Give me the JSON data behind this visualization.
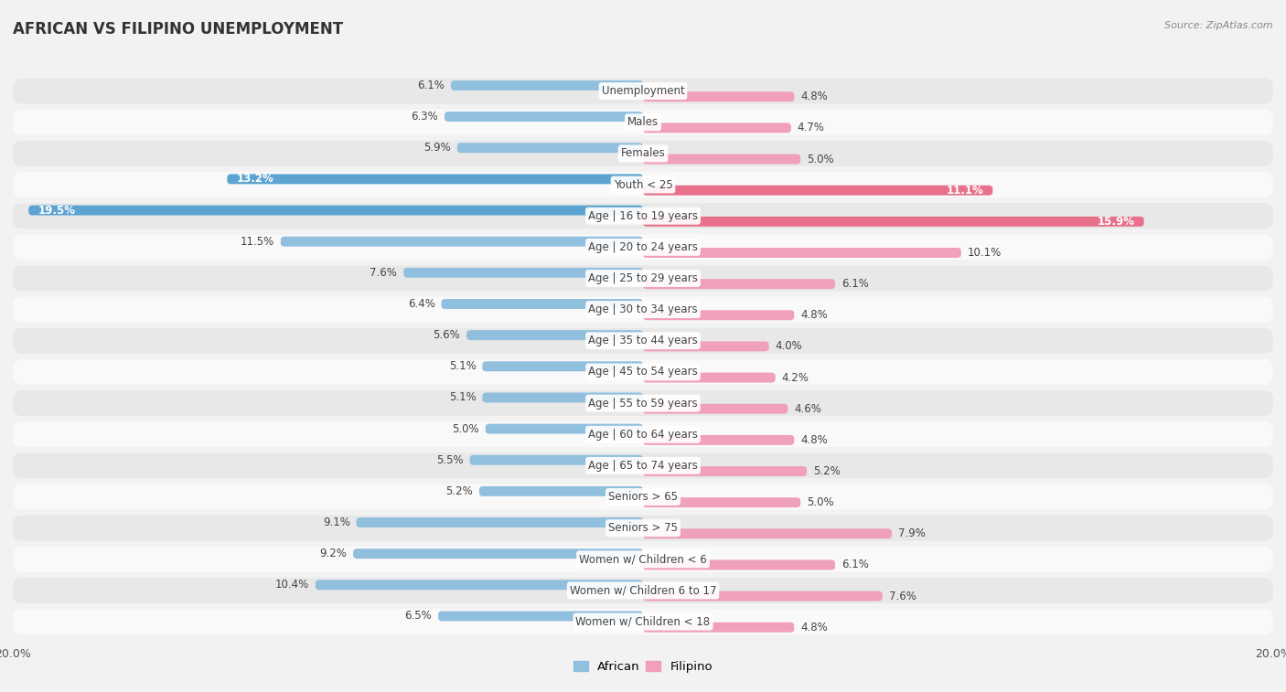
{
  "title": "AFRICAN VS FILIPINO UNEMPLOYMENT",
  "source": "Source: ZipAtlas.com",
  "categories": [
    "Unemployment",
    "Males",
    "Females",
    "Youth < 25",
    "Age | 16 to 19 years",
    "Age | 20 to 24 years",
    "Age | 25 to 29 years",
    "Age | 30 to 34 years",
    "Age | 35 to 44 years",
    "Age | 45 to 54 years",
    "Age | 55 to 59 years",
    "Age | 60 to 64 years",
    "Age | 65 to 74 years",
    "Seniors > 65",
    "Seniors > 75",
    "Women w/ Children < 6",
    "Women w/ Children 6 to 17",
    "Women w/ Children < 18"
  ],
  "african": [
    6.1,
    6.3,
    5.9,
    13.2,
    19.5,
    11.5,
    7.6,
    6.4,
    5.6,
    5.1,
    5.1,
    5.0,
    5.5,
    5.2,
    9.1,
    9.2,
    10.4,
    6.5
  ],
  "filipino": [
    4.8,
    4.7,
    5.0,
    11.1,
    15.9,
    10.1,
    6.1,
    4.8,
    4.0,
    4.2,
    4.6,
    4.8,
    5.2,
    5.0,
    7.9,
    6.1,
    7.6,
    4.8
  ],
  "african_color": "#91bfde",
  "filipino_color": "#f0a0b8",
  "african_highlight_color": "#5ba3d0",
  "filipino_highlight_color": "#e8708a",
  "bg_color": "#f2f2f2",
  "row_odd_color": "#e8e8e8",
  "row_even_color": "#f9f9f9",
  "max_val": 20.0,
  "label_fontsize": 8.5,
  "title_fontsize": 12,
  "source_fontsize": 8,
  "legend_fontsize": 9.5,
  "value_fontsize": 8.5,
  "highlight_rows": [
    3,
    4
  ]
}
